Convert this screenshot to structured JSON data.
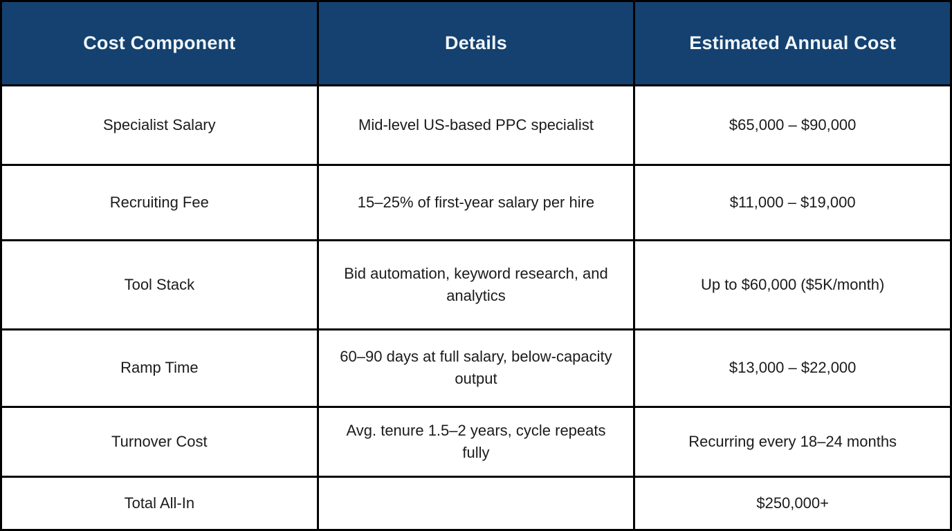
{
  "chart_data": {
    "type": "table",
    "title": "",
    "columns": [
      "Cost Component",
      "Details",
      "Estimated Annual Cost"
    ],
    "rows": [
      [
        "Specialist Salary",
        "Mid-level US-based PPC specialist",
        "$65,000 – $90,000"
      ],
      [
        "Recruiting Fee",
        "15–25% of first-year salary per hire",
        "$11,000 – $19,000"
      ],
      [
        "Tool Stack",
        "Bid automation, keyword research, and analytics",
        "Up to $60,000 ($5K/month)"
      ],
      [
        "Ramp Time",
        "60–90 days at full salary, below-capacity output",
        "$13,000 – $22,000"
      ],
      [
        "Turnover Cost",
        "Avg. tenure 1.5–2 years, cycle repeats fully",
        "Recurring every 18–24 months"
      ],
      [
        "Total All-In",
        "",
        "$250,000+"
      ]
    ],
    "legend_position": "none",
    "grid": true
  },
  "colors": {
    "header_bg": "#14416F",
    "header_text": "#F1F6FB",
    "body_text": "#1B1B1B",
    "border": "#000000",
    "cell_bg": "#FFFFFF"
  }
}
